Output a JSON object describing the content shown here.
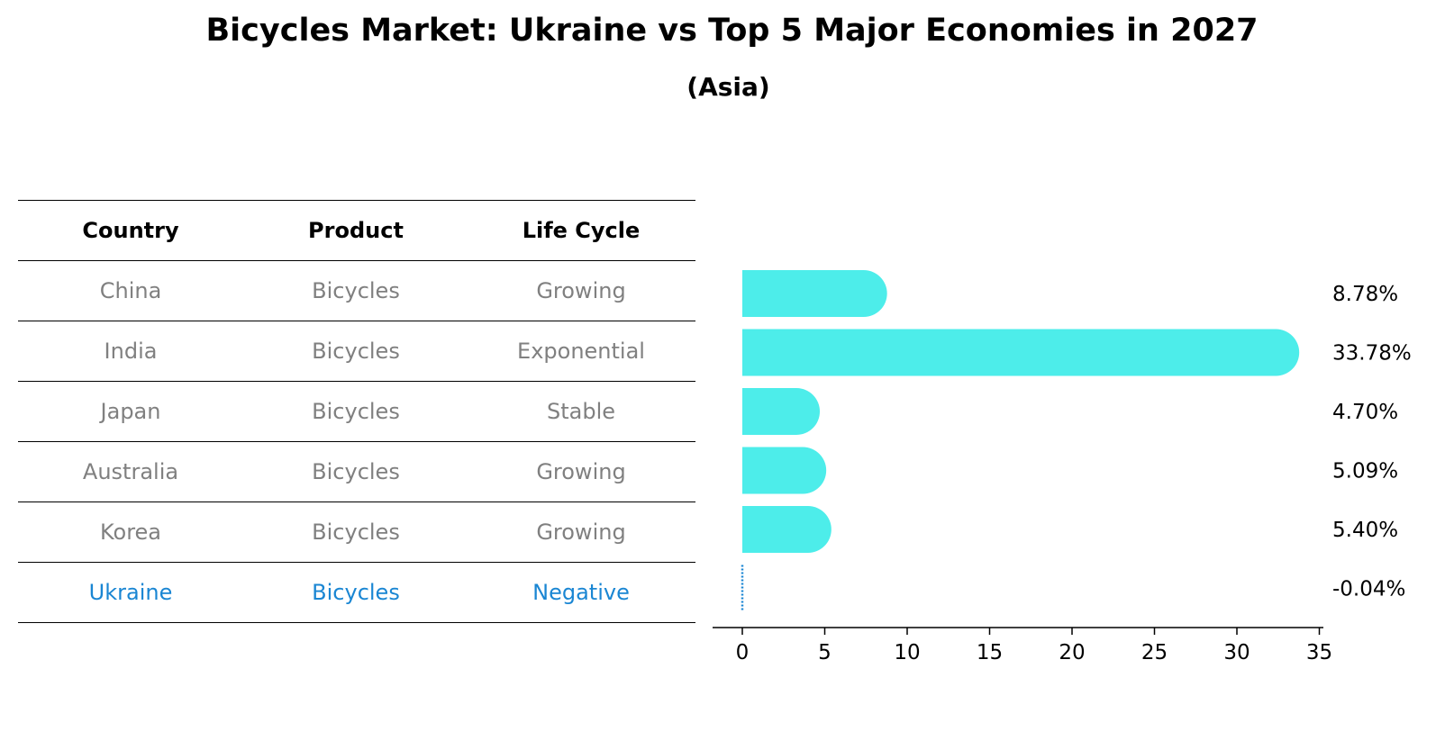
{
  "title": "Bicycles Market: Ukraine vs Top 5 Major Economies in 2027",
  "subtitle": "(Asia)",
  "table": {
    "headers": [
      "Country",
      "Product",
      "Life Cycle"
    ],
    "rows": [
      [
        "China",
        "Bicycles",
        "Growing"
      ],
      [
        "India",
        "Bicycles",
        "Exponential"
      ],
      [
        "Japan",
        "Bicycles",
        "Stable"
      ],
      [
        "Australia",
        "Bicycles",
        "Growing"
      ],
      [
        "Korea",
        "Bicycles",
        "Growing"
      ],
      [
        "Ukraine",
        "Bicycles",
        "Negative"
      ]
    ]
  },
  "colors": {
    "bar": "#4dedea",
    "highlight": "#1a86d3",
    "muted": "#808080"
  },
  "chart_data": {
    "type": "bar",
    "orientation": "horizontal",
    "categories": [
      "China",
      "India",
      "Japan",
      "Australia",
      "Korea",
      "Ukraine"
    ],
    "values": [
      8.78,
      33.78,
      4.7,
      5.09,
      5.4,
      -0.04
    ],
    "value_labels": [
      "8.78%",
      "33.78%",
      "4.70%",
      "5.09%",
      "5.40%",
      "-0.04%"
    ],
    "xlim": [
      -1.7,
      35.5
    ],
    "xticks": [
      0,
      5,
      10,
      15,
      20,
      25,
      30,
      35
    ],
    "xlabel": "",
    "ylabel": "",
    "grid": false,
    "legend": "none"
  }
}
